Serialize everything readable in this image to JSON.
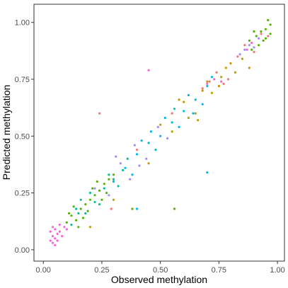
{
  "chart_data": {
    "type": "scatter",
    "title": "",
    "xlabel": "Observed methylation",
    "ylabel": "Predicted methylation",
    "xlim": [
      -0.04,
      1.03
    ],
    "ylim": [
      -0.05,
      1.08
    ],
    "x_ticks": [
      0.0,
      0.25,
      0.5,
      0.75,
      1.0
    ],
    "x_tick_labels": [
      "0.00",
      "0.25",
      "0.50",
      "0.75",
      "1.00"
    ],
    "y_ticks": [
      0.0,
      0.25,
      0.5,
      0.75,
      1.0
    ],
    "y_tick_labels": [
      "0.00",
      "0.25",
      "0.50",
      "0.75",
      "1.00"
    ],
    "grid": false,
    "legend": "none",
    "series_colors": [
      "#F8766D",
      "#C49A00",
      "#53B400",
      "#00C094",
      "#00B6EB",
      "#A58AFF",
      "#FB61D7"
    ],
    "clusters": [
      {
        "color": "#FB61D7",
        "points": [
          [
            0.03,
            0.04
          ],
          [
            0.04,
            0.06
          ],
          [
            0.05,
            0.05
          ],
          [
            0.06,
            0.07
          ],
          [
            0.04,
            0.03
          ],
          [
            0.07,
            0.08
          ],
          [
            0.05,
            0.09
          ],
          [
            0.08,
            0.06
          ],
          [
            0.03,
            0.08
          ],
          [
            0.06,
            0.04
          ],
          [
            0.09,
            0.1
          ],
          [
            0.05,
            0.02
          ],
          [
            0.07,
            0.11
          ],
          [
            0.1,
            0.09
          ],
          [
            0.04,
            0.1
          ]
        ]
      },
      {
        "color": "#53B400",
        "points": [
          [
            0.1,
            0.12
          ],
          [
            0.12,
            0.15
          ],
          [
            0.14,
            0.13
          ],
          [
            0.16,
            0.18
          ],
          [
            0.18,
            0.2
          ],
          [
            0.2,
            0.22
          ],
          [
            0.22,
            0.24
          ],
          [
            0.24,
            0.26
          ],
          [
            0.26,
            0.29
          ],
          [
            0.13,
            0.19
          ],
          [
            0.17,
            0.14
          ],
          [
            0.21,
            0.27
          ],
          [
            0.19,
            0.17
          ],
          [
            0.25,
            0.22
          ],
          [
            0.28,
            0.31
          ],
          [
            0.15,
            0.1
          ],
          [
            0.23,
            0.3
          ],
          [
            0.11,
            0.16
          ],
          [
            0.27,
            0.25
          ],
          [
            0.3,
            0.33
          ]
        ]
      },
      {
        "color": "#00C094",
        "points": [
          [
            0.12,
            0.11
          ],
          [
            0.15,
            0.16
          ],
          [
            0.18,
            0.16
          ],
          [
            0.22,
            0.21
          ],
          [
            0.26,
            0.27
          ],
          [
            0.3,
            0.31
          ],
          [
            0.34,
            0.35
          ],
          [
            0.2,
            0.25
          ],
          [
            0.24,
            0.2
          ],
          [
            0.28,
            0.33
          ],
          [
            0.16,
            0.22
          ],
          [
            0.32,
            0.28
          ],
          [
            0.36,
            0.4
          ],
          [
            0.14,
            0.18
          ]
        ]
      },
      {
        "color": "#00B6EB",
        "points": [
          [
            0.3,
            0.3
          ],
          [
            0.35,
            0.36
          ],
          [
            0.4,
            0.42
          ],
          [
            0.45,
            0.47
          ],
          [
            0.5,
            0.5
          ],
          [
            0.55,
            0.56
          ],
          [
            0.6,
            0.61
          ],
          [
            0.65,
            0.66
          ],
          [
            0.7,
            0.72
          ],
          [
            0.38,
            0.33
          ],
          [
            0.42,
            0.48
          ],
          [
            0.48,
            0.44
          ],
          [
            0.52,
            0.58
          ],
          [
            0.58,
            0.54
          ],
          [
            0.62,
            0.68
          ],
          [
            0.68,
            0.64
          ],
          [
            0.72,
            0.76
          ],
          [
            0.46,
            0.52
          ],
          [
            0.56,
            0.62
          ],
          [
            0.64,
            0.6
          ]
        ]
      },
      {
        "color": "#A58AFF",
        "points": [
          [
            0.22,
            0.27
          ],
          [
            0.28,
            0.24
          ],
          [
            0.33,
            0.38
          ],
          [
            0.37,
            0.31
          ],
          [
            0.41,
            0.37
          ],
          [
            0.44,
            0.4
          ],
          [
            0.49,
            0.54
          ],
          [
            0.53,
            0.49
          ],
          [
            0.31,
            0.41
          ],
          [
            0.39,
            0.46
          ],
          [
            0.86,
            0.88
          ],
          [
            0.88,
            0.9
          ],
          [
            0.9,
            0.89
          ],
          [
            0.84,
            0.86
          ],
          [
            0.92,
            0.93
          ]
        ]
      },
      {
        "color": "#C49A00",
        "points": [
          [
            0.5,
            0.55
          ],
          [
            0.55,
            0.52
          ],
          [
            0.6,
            0.65
          ],
          [
            0.65,
            0.6
          ],
          [
            0.7,
            0.74
          ],
          [
            0.75,
            0.72
          ],
          [
            0.8,
            0.82
          ],
          [
            0.85,
            0.84
          ],
          [
            0.62,
            0.58
          ],
          [
            0.58,
            0.66
          ],
          [
            0.72,
            0.69
          ],
          [
            0.78,
            0.8
          ],
          [
            0.82,
            0.78
          ],
          [
            0.68,
            0.7
          ],
          [
            0.76,
            0.76
          ],
          [
            0.3,
            0.22
          ],
          [
            0.45,
            0.38
          ],
          [
            0.66,
            0.57
          ],
          [
            0.2,
            0.1
          ],
          [
            0.88,
            0.8
          ]
        ]
      },
      {
        "color": "#F8766D",
        "points": [
          [
            0.4,
            0.44
          ],
          [
            0.55,
            0.6
          ],
          [
            0.68,
            0.71
          ],
          [
            0.74,
            0.78
          ],
          [
            0.79,
            0.75
          ],
          [
            0.86,
            0.9
          ],
          [
            0.9,
            0.87
          ],
          [
            0.93,
            0.95
          ],
          [
            0.96,
            0.94
          ],
          [
            0.71,
            0.74
          ],
          [
            0.77,
            0.73
          ],
          [
            0.83,
            0.85
          ]
        ]
      },
      {
        "color": "#53B400",
        "points": [
          [
            0.88,
            0.92
          ],
          [
            0.91,
            0.94
          ],
          [
            0.93,
            0.96
          ],
          [
            0.95,
            0.97
          ],
          [
            0.97,
            0.99
          ],
          [
            0.96,
            1.01
          ],
          [
            0.94,
            0.92
          ],
          [
            0.92,
            0.9
          ],
          [
            0.97,
            0.95
          ],
          [
            0.9,
            0.96
          ],
          [
            0.95,
            0.93
          ],
          [
            0.89,
            0.88
          ]
        ]
      },
      {
        "color": "#FB61D7",
        "points": [
          [
            0.45,
            0.79
          ],
          [
            0.73,
            0.75
          ],
          [
            0.7,
            0.73
          ],
          [
            0.76,
            0.74
          ],
          [
            0.87,
            0.88
          ],
          [
            0.89,
            0.91
          ]
        ]
      },
      {
        "color": "#F8766D",
        "points": [
          [
            0.24,
            0.6
          ],
          [
            0.29,
            0.18
          ]
        ]
      },
      {
        "color": "#00B6EB",
        "points": [
          [
            0.7,
            0.34
          ],
          [
            0.4,
            0.18
          ]
        ]
      },
      {
        "color": "#53B400",
        "points": [
          [
            0.56,
            0.18
          ],
          [
            0.38,
            0.18
          ]
        ]
      }
    ]
  }
}
